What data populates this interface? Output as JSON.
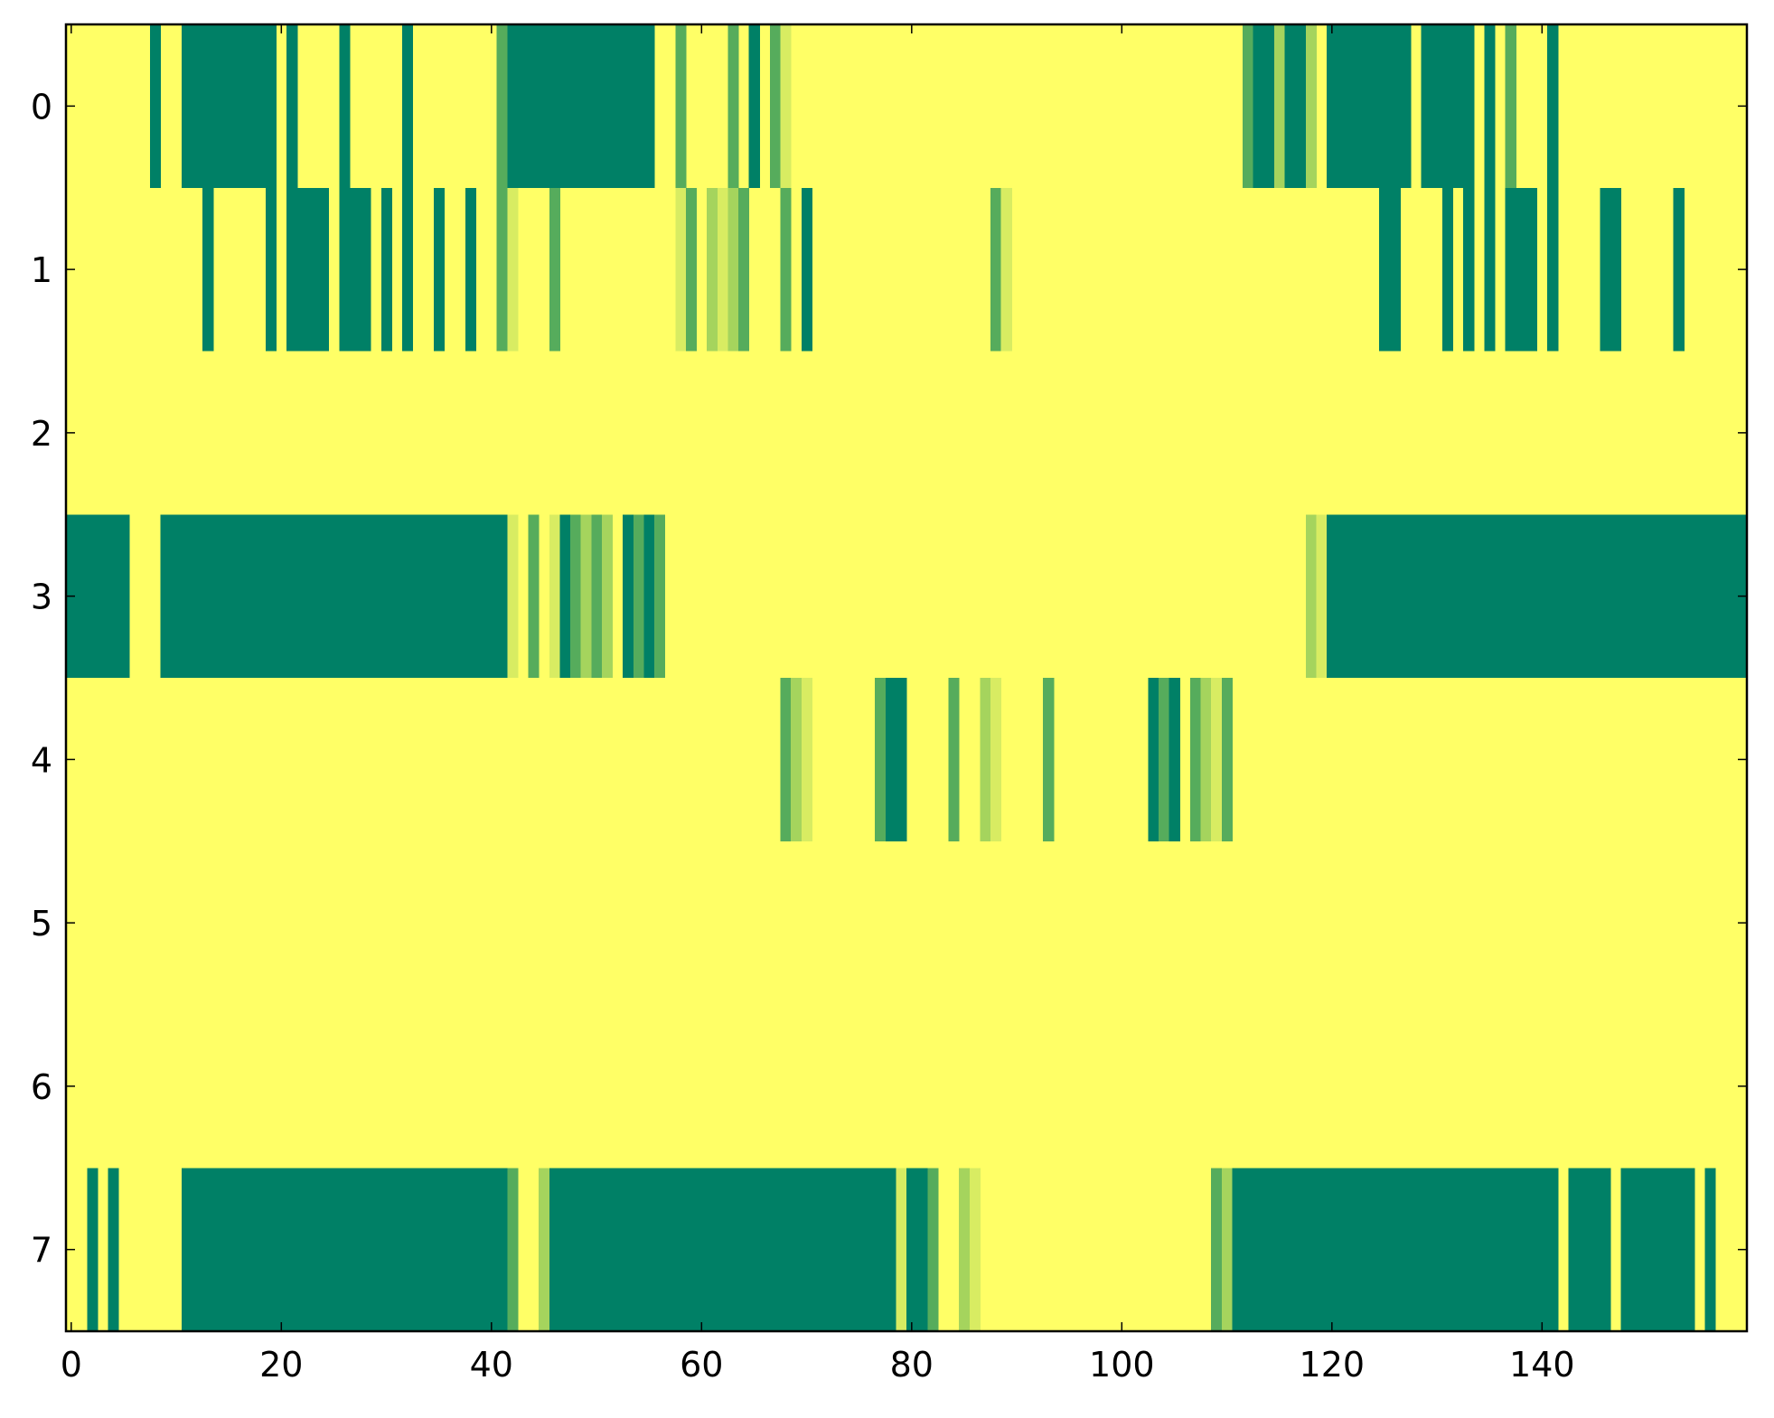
{
  "chart_data": {
    "type": "heatmap",
    "title": "",
    "xlabel": "",
    "ylabel": "",
    "xlim": [
      -0.5,
      159.5
    ],
    "ylim": [
      7.5,
      -0.5
    ],
    "x_ticks": [
      0,
      20,
      40,
      60,
      80,
      100,
      120,
      140
    ],
    "x_tick_labels": [
      "0",
      "20",
      "40",
      "60",
      "80",
      "100",
      "120",
      "140"
    ],
    "y_ticks": [
      0,
      1,
      2,
      3,
      4,
      5,
      6,
      7
    ],
    "y_tick_labels": [
      "0",
      "1",
      "2",
      "3",
      "4",
      "5",
      "6",
      "7"
    ],
    "grid": false,
    "colormap": "summer_r",
    "colors": {
      "background": "#ffff66",
      "levels": {
        "0": "#ffff66",
        "1": "#d8ec62",
        "2": "#a5d45d",
        "3": "#56ac5c",
        "4": "#008066"
      }
    },
    "value_encoding": "cell color level 0 (yellow, low) to 4 (dark green, high); runs given as [start_column, end_column_inclusive, level]; all unlisted cells are level 0",
    "n_rows": 8,
    "n_cols": 160,
    "rows": [
      {
        "row": 0,
        "runs": [
          [
            8,
            8,
            4
          ],
          [
            11,
            19,
            4
          ],
          [
            21,
            21,
            4
          ],
          [
            26,
            26,
            4
          ],
          [
            32,
            32,
            4
          ],
          [
            41,
            41,
            3
          ],
          [
            42,
            55,
            4
          ],
          [
            58,
            58,
            3
          ],
          [
            63,
            63,
            3
          ],
          [
            65,
            65,
            4
          ],
          [
            67,
            67,
            3
          ],
          [
            68,
            68,
            1
          ],
          [
            112,
            112,
            3
          ],
          [
            113,
            114,
            4
          ],
          [
            115,
            115,
            2
          ],
          [
            116,
            117,
            4
          ],
          [
            118,
            118,
            2
          ],
          [
            120,
            127,
            4
          ],
          [
            129,
            133,
            4
          ],
          [
            135,
            135,
            4
          ],
          [
            137,
            137,
            3
          ],
          [
            141,
            141,
            4
          ]
        ]
      },
      {
        "row": 1,
        "runs": [
          [
            13,
            13,
            4
          ],
          [
            19,
            19,
            4
          ],
          [
            21,
            24,
            4
          ],
          [
            26,
            28,
            4
          ],
          [
            30,
            30,
            4
          ],
          [
            32,
            32,
            4
          ],
          [
            35,
            35,
            4
          ],
          [
            38,
            38,
            4
          ],
          [
            41,
            41,
            3
          ],
          [
            42,
            42,
            1
          ],
          [
            46,
            46,
            3
          ],
          [
            58,
            58,
            1
          ],
          [
            59,
            59,
            3
          ],
          [
            61,
            61,
            2
          ],
          [
            62,
            62,
            1
          ],
          [
            63,
            63,
            2
          ],
          [
            64,
            64,
            3
          ],
          [
            68,
            68,
            3
          ],
          [
            70,
            70,
            4
          ],
          [
            88,
            88,
            3
          ],
          [
            89,
            89,
            1
          ],
          [
            125,
            126,
            4
          ],
          [
            131,
            131,
            4
          ],
          [
            133,
            133,
            4
          ],
          [
            135,
            135,
            4
          ],
          [
            137,
            139,
            4
          ],
          [
            141,
            141,
            4
          ],
          [
            146,
            147,
            4
          ],
          [
            153,
            153,
            4
          ]
        ]
      },
      {
        "row": 2,
        "runs": []
      },
      {
        "row": 3,
        "runs": [
          [
            0,
            5,
            4
          ],
          [
            9,
            41,
            4
          ],
          [
            42,
            42,
            1
          ],
          [
            44,
            44,
            3
          ],
          [
            46,
            46,
            1
          ],
          [
            47,
            47,
            4
          ],
          [
            48,
            48,
            3
          ],
          [
            49,
            49,
            2
          ],
          [
            50,
            50,
            3
          ],
          [
            51,
            51,
            2
          ],
          [
            53,
            53,
            4
          ],
          [
            54,
            54,
            3
          ],
          [
            55,
            55,
            4
          ],
          [
            56,
            56,
            3
          ],
          [
            118,
            118,
            2
          ],
          [
            119,
            119,
            1
          ],
          [
            120,
            159,
            4
          ]
        ]
      },
      {
        "row": 4,
        "runs": [
          [
            68,
            68,
            3
          ],
          [
            69,
            69,
            2
          ],
          [
            70,
            70,
            1
          ],
          [
            77,
            77,
            3
          ],
          [
            78,
            79,
            4
          ],
          [
            84,
            84,
            3
          ],
          [
            87,
            87,
            2
          ],
          [
            88,
            88,
            1
          ],
          [
            93,
            93,
            3
          ],
          [
            103,
            103,
            4
          ],
          [
            104,
            104,
            3
          ],
          [
            105,
            105,
            4
          ],
          [
            107,
            107,
            3
          ],
          [
            108,
            108,
            2
          ],
          [
            109,
            109,
            1
          ],
          [
            110,
            110,
            3
          ]
        ]
      },
      {
        "row": 5,
        "runs": []
      },
      {
        "row": 6,
        "runs": []
      },
      {
        "row": 7,
        "runs": [
          [
            2,
            2,
            4
          ],
          [
            4,
            4,
            4
          ],
          [
            11,
            41,
            4
          ],
          [
            42,
            42,
            3
          ],
          [
            45,
            45,
            2
          ],
          [
            46,
            78,
            4
          ],
          [
            79,
            79,
            1
          ],
          [
            80,
            81,
            4
          ],
          [
            82,
            82,
            3
          ],
          [
            85,
            85,
            2
          ],
          [
            86,
            86,
            1
          ],
          [
            109,
            109,
            3
          ],
          [
            110,
            110,
            2
          ],
          [
            111,
            141,
            4
          ],
          [
            143,
            146,
            4
          ],
          [
            148,
            154,
            4
          ],
          [
            156,
            156,
            4
          ]
        ]
      }
    ]
  }
}
